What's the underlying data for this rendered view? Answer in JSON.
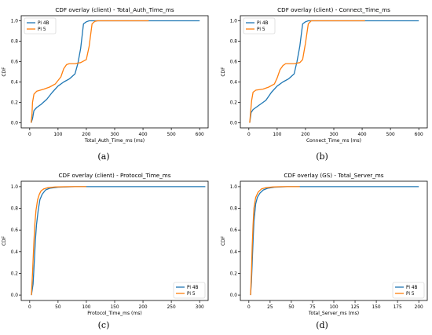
{
  "legend_labels": [
    "Pi 4B",
    "Pi 5"
  ],
  "colors": {
    "pi4b": "#1f77b4",
    "pi5": "#ff7f0e"
  },
  "chart_data": [
    {
      "type": "line",
      "title": "CDF overlay (client) - Total_Auth_Time_ms",
      "caption": "(a)",
      "xlabel": "Total_Auth_Time_ms (ms)",
      "ylabel": "CDF",
      "xlim": [
        -30,
        630
      ],
      "ylim": [
        -0.05,
        1.05
      ],
      "xticks": [
        0,
        100,
        200,
        300,
        400,
        500,
        600
      ],
      "yticks": [
        0.0,
        0.2,
        0.4,
        0.6,
        0.8,
        1.0
      ],
      "legend_position": "top-left",
      "series": [
        {
          "name": "Pi 4B",
          "x": [
            5,
            10,
            15,
            25,
            40,
            60,
            80,
            100,
            120,
            140,
            160,
            170,
            180,
            190,
            200,
            210,
            220,
            300,
            420,
            600
          ],
          "y": [
            0.0,
            0.04,
            0.12,
            0.15,
            0.18,
            0.23,
            0.3,
            0.36,
            0.4,
            0.43,
            0.48,
            0.58,
            0.73,
            0.97,
            0.99,
            1.0,
            1.0,
            1.0,
            1.0,
            1.0
          ]
        },
        {
          "name": "Pi 5",
          "x": [
            5,
            8,
            10,
            15,
            25,
            50,
            70,
            90,
            110,
            120,
            130,
            140,
            160,
            180,
            200,
            210,
            220,
            230,
            240,
            300,
            420
          ],
          "y": [
            0.0,
            0.08,
            0.2,
            0.28,
            0.31,
            0.33,
            0.35,
            0.38,
            0.45,
            0.53,
            0.57,
            0.58,
            0.58,
            0.59,
            0.62,
            0.75,
            0.97,
            0.995,
            1.0,
            1.0,
            1.0
          ]
        }
      ]
    },
    {
      "type": "line",
      "title": "CDF overlay (client) - Connect_Time_ms",
      "caption": "(b)",
      "xlabel": "Connect_Time_ms (ms)",
      "ylabel": "CDF",
      "xlim": [
        -30,
        630
      ],
      "ylim": [
        -0.05,
        1.05
      ],
      "xticks": [
        0,
        100,
        200,
        300,
        400,
        500,
        600
      ],
      "yticks": [
        0.0,
        0.2,
        0.4,
        0.6,
        0.8,
        1.0
      ],
      "legend_position": "top-left",
      "series": [
        {
          "name": "Pi 4B",
          "x": [
            3,
            8,
            15,
            25,
            40,
            60,
            80,
            100,
            120,
            140,
            160,
            170,
            180,
            190,
            200,
            210,
            300,
            420,
            600
          ],
          "y": [
            0.0,
            0.1,
            0.13,
            0.15,
            0.18,
            0.22,
            0.3,
            0.36,
            0.4,
            0.43,
            0.48,
            0.6,
            0.75,
            0.97,
            0.99,
            1.0,
            1.0,
            1.0,
            1.0
          ]
        },
        {
          "name": "Pi 5",
          "x": [
            3,
            6,
            10,
            15,
            25,
            50,
            70,
            90,
            100,
            110,
            120,
            130,
            140,
            160,
            180,
            190,
            200,
            210,
            220,
            300,
            410
          ],
          "y": [
            0.0,
            0.1,
            0.22,
            0.3,
            0.32,
            0.33,
            0.35,
            0.38,
            0.44,
            0.52,
            0.56,
            0.58,
            0.58,
            0.58,
            0.59,
            0.62,
            0.78,
            0.97,
            1.0,
            1.0,
            1.0
          ]
        }
      ]
    },
    {
      "type": "line",
      "title": "CDF overlay (client) - Protocol_Time_ms",
      "caption": "(c)",
      "xlabel": "Protocol_Time_ms (ms)",
      "ylabel": "CDF",
      "xlim": [
        -15,
        315
      ],
      "ylim": [
        -0.05,
        1.05
      ],
      "xticks": [
        0,
        50,
        100,
        150,
        200,
        250,
        300
      ],
      "yticks": [
        0.0,
        0.2,
        0.4,
        0.6,
        0.8,
        1.0
      ],
      "legend_position": "bottom-right",
      "series": [
        {
          "name": "Pi 4B",
          "x": [
            3,
            6,
            8,
            10,
            12,
            15,
            18,
            22,
            28,
            35,
            50,
            80,
            120,
            310
          ],
          "y": [
            0.0,
            0.1,
            0.3,
            0.5,
            0.65,
            0.78,
            0.88,
            0.93,
            0.97,
            0.985,
            0.995,
            1.0,
            1.0,
            1.0
          ]
        },
        {
          "name": "Pi 5",
          "x": [
            3,
            5,
            7,
            9,
            11,
            14,
            17,
            20,
            25,
            32,
            45,
            70,
            100
          ],
          "y": [
            0.0,
            0.2,
            0.45,
            0.65,
            0.78,
            0.88,
            0.93,
            0.96,
            0.98,
            0.99,
            0.997,
            1.0,
            1.0
          ]
        }
      ]
    },
    {
      "type": "line",
      "title": "CDF overlay (GS) - Total_Server_ms",
      "caption": "(d)",
      "xlabel": "Total_Server_ms (ms)",
      "ylabel": "CDF",
      "xlim": [
        -10,
        210
      ],
      "ylim": [
        -0.05,
        1.05
      ],
      "xticks": [
        0,
        25,
        50,
        75,
        100,
        125,
        150,
        175,
        200
      ],
      "yticks": [
        0.0,
        0.2,
        0.4,
        0.6,
        0.8,
        1.0
      ],
      "legend_position": "bottom-right",
      "series": [
        {
          "name": "Pi 4B",
          "x": [
            2,
            3,
            4,
            5,
            6,
            8,
            10,
            13,
            17,
            22,
            30,
            45,
            70,
            200
          ],
          "y": [
            0.0,
            0.12,
            0.3,
            0.5,
            0.68,
            0.84,
            0.9,
            0.94,
            0.97,
            0.985,
            0.995,
            1.0,
            1.0,
            1.0
          ]
        },
        {
          "name": "Pi 5",
          "x": [
            2,
            3,
            4,
            5,
            6,
            8,
            11,
            15,
            20,
            28,
            40,
            60
          ],
          "y": [
            0.0,
            0.2,
            0.45,
            0.65,
            0.8,
            0.9,
            0.95,
            0.98,
            0.99,
            0.997,
            1.0,
            1.0
          ]
        }
      ]
    }
  ]
}
